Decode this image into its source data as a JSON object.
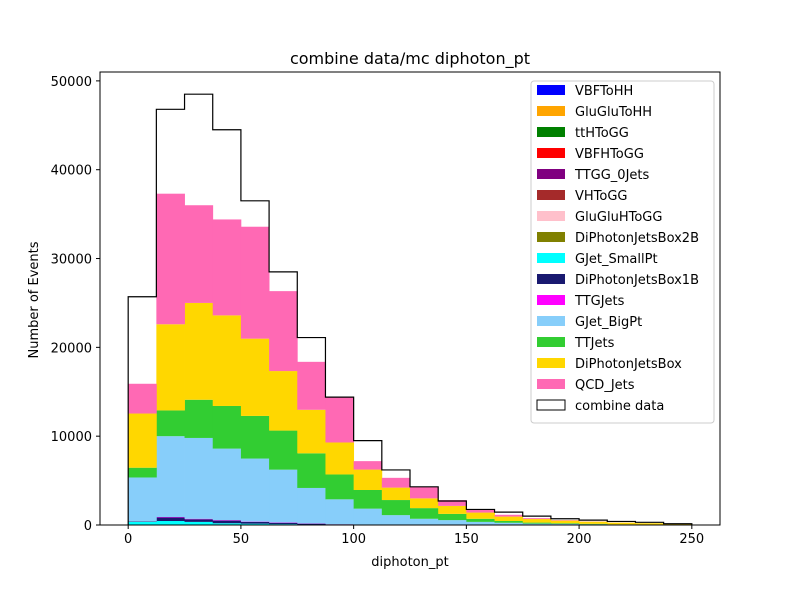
{
  "chart_data": {
    "type": "bar",
    "stacked": true,
    "title": "combine data/mc diphoton_pt",
    "xlabel": "diphoton_pt",
    "ylabel": "Number of Events",
    "xlim": [
      -12.5,
      262.5
    ],
    "ylim": [
      0,
      51000
    ],
    "x_ticks": [
      0,
      50,
      100,
      150,
      200,
      250
    ],
    "y_ticks": [
      0,
      10000,
      20000,
      30000,
      40000,
      50000
    ],
    "x_tick_labels": [
      "0",
      "50",
      "100",
      "150",
      "200",
      "250"
    ],
    "y_tick_labels": [
      "0",
      "10000",
      "20000",
      "30000",
      "40000",
      "50000"
    ],
    "bin_edges": [
      0,
      12.5,
      25,
      37.5,
      50,
      62.5,
      75,
      87.5,
      100,
      112.5,
      125,
      137.5,
      150,
      162.5,
      175,
      187.5,
      200,
      212.5,
      225,
      237.5,
      250
    ],
    "legend_position": "top-right",
    "series": [
      {
        "name": "VBFToHH",
        "color": "#0000ff",
        "values": [
          0,
          0,
          0,
          0,
          0,
          0,
          0,
          0,
          0,
          0,
          0,
          0,
          0,
          0,
          0,
          0,
          0,
          0,
          0,
          0
        ]
      },
      {
        "name": "GluGluToHH",
        "color": "#ffa500",
        "values": [
          0,
          0,
          0,
          0,
          0,
          0,
          0,
          0,
          0,
          0,
          0,
          0,
          0,
          0,
          0,
          0,
          0,
          0,
          0,
          0
        ]
      },
      {
        "name": "ttHToGG",
        "color": "#008000",
        "values": [
          0,
          0,
          0,
          0,
          0,
          0,
          0,
          0,
          0,
          0,
          0,
          0,
          0,
          0,
          0,
          0,
          0,
          0,
          0,
          0
        ]
      },
      {
        "name": "VBFHToGG",
        "color": "#ff0000",
        "values": [
          0,
          0,
          0,
          0,
          0,
          0,
          0,
          0,
          0,
          0,
          0,
          0,
          0,
          0,
          0,
          0,
          0,
          0,
          0,
          0
        ]
      },
      {
        "name": "TTGG_0Jets",
        "color": "#800080",
        "values": [
          0,
          0,
          0,
          0,
          0,
          0,
          0,
          0,
          0,
          0,
          0,
          0,
          0,
          0,
          0,
          0,
          0,
          0,
          0,
          0
        ]
      },
      {
        "name": "VHToGG",
        "color": "#a52a2a",
        "values": [
          0,
          0,
          0,
          0,
          0,
          0,
          0,
          0,
          0,
          0,
          0,
          0,
          0,
          0,
          0,
          0,
          0,
          0,
          0,
          0
        ]
      },
      {
        "name": "GluGluHToGG",
        "color": "#ffc0cb",
        "values": [
          0,
          0,
          0,
          0,
          0,
          0,
          0,
          0,
          0,
          0,
          0,
          0,
          0,
          0,
          0,
          0,
          0,
          0,
          0,
          0
        ]
      },
      {
        "name": "DiPhotonJetsBox2B",
        "color": "#808000",
        "values": [
          0,
          0,
          0,
          0,
          0,
          0,
          0,
          0,
          0,
          0,
          0,
          0,
          0,
          0,
          0,
          0,
          0,
          0,
          0,
          0
        ]
      },
      {
        "name": "GJet_SmallPt",
        "color": "#00ffff",
        "values": [
          350,
          450,
          350,
          200,
          150,
          100,
          50,
          30,
          10,
          0,
          0,
          0,
          0,
          0,
          0,
          0,
          0,
          0,
          0,
          0
        ]
      },
      {
        "name": "DiPhotonJetsBox1B",
        "color": "#191970",
        "values": [
          50,
          400,
          300,
          300,
          200,
          150,
          100,
          50,
          20,
          10,
          0,
          0,
          0,
          0,
          0,
          0,
          0,
          0,
          0,
          0
        ]
      },
      {
        "name": "TTGJets",
        "color": "#ff00ff",
        "values": [
          0,
          50,
          50,
          50,
          30,
          30,
          20,
          10,
          10,
          0,
          0,
          0,
          0,
          0,
          0,
          0,
          0,
          0,
          0,
          0
        ]
      },
      {
        "name": "GJet_BigPt",
        "color": "#87cefa",
        "values": [
          4950,
          9100,
          9100,
          8050,
          7100,
          5950,
          4000,
          2800,
          1800,
          1100,
          700,
          550,
          350,
          250,
          150,
          120,
          80,
          40,
          30,
          20
        ]
      },
      {
        "name": "TTJets",
        "color": "#32cd32",
        "values": [
          1100,
          2900,
          4300,
          4800,
          4800,
          4400,
          3900,
          2800,
          2100,
          1700,
          1200,
          700,
          350,
          200,
          120,
          80,
          50,
          30,
          20,
          10
        ]
      },
      {
        "name": "DiPhotonJetsBox",
        "color": "#ffd700",
        "values": [
          6100,
          9700,
          10900,
          10200,
          8700,
          6700,
          4900,
          3600,
          2300,
          1400,
          1100,
          900,
          700,
          500,
          400,
          300,
          250,
          200,
          150,
          100
        ]
      },
      {
        "name": "QCD_Jets",
        "color": "#ff69b4",
        "values": [
          3350,
          14700,
          11000,
          10800,
          12600,
          9000,
          5400,
          5100,
          950,
          1100,
          1300,
          650,
          400,
          200,
          100,
          50,
          20,
          10,
          0,
          0
        ]
      }
    ],
    "data_series": {
      "name": "combine data",
      "values": [
        25700,
        46800,
        48500,
        44500,
        36500,
        28500,
        21100,
        14400,
        9500,
        6200,
        4300,
        2700,
        1750,
        1450,
        1000,
        700,
        550,
        400,
        300,
        150
      ]
    }
  }
}
